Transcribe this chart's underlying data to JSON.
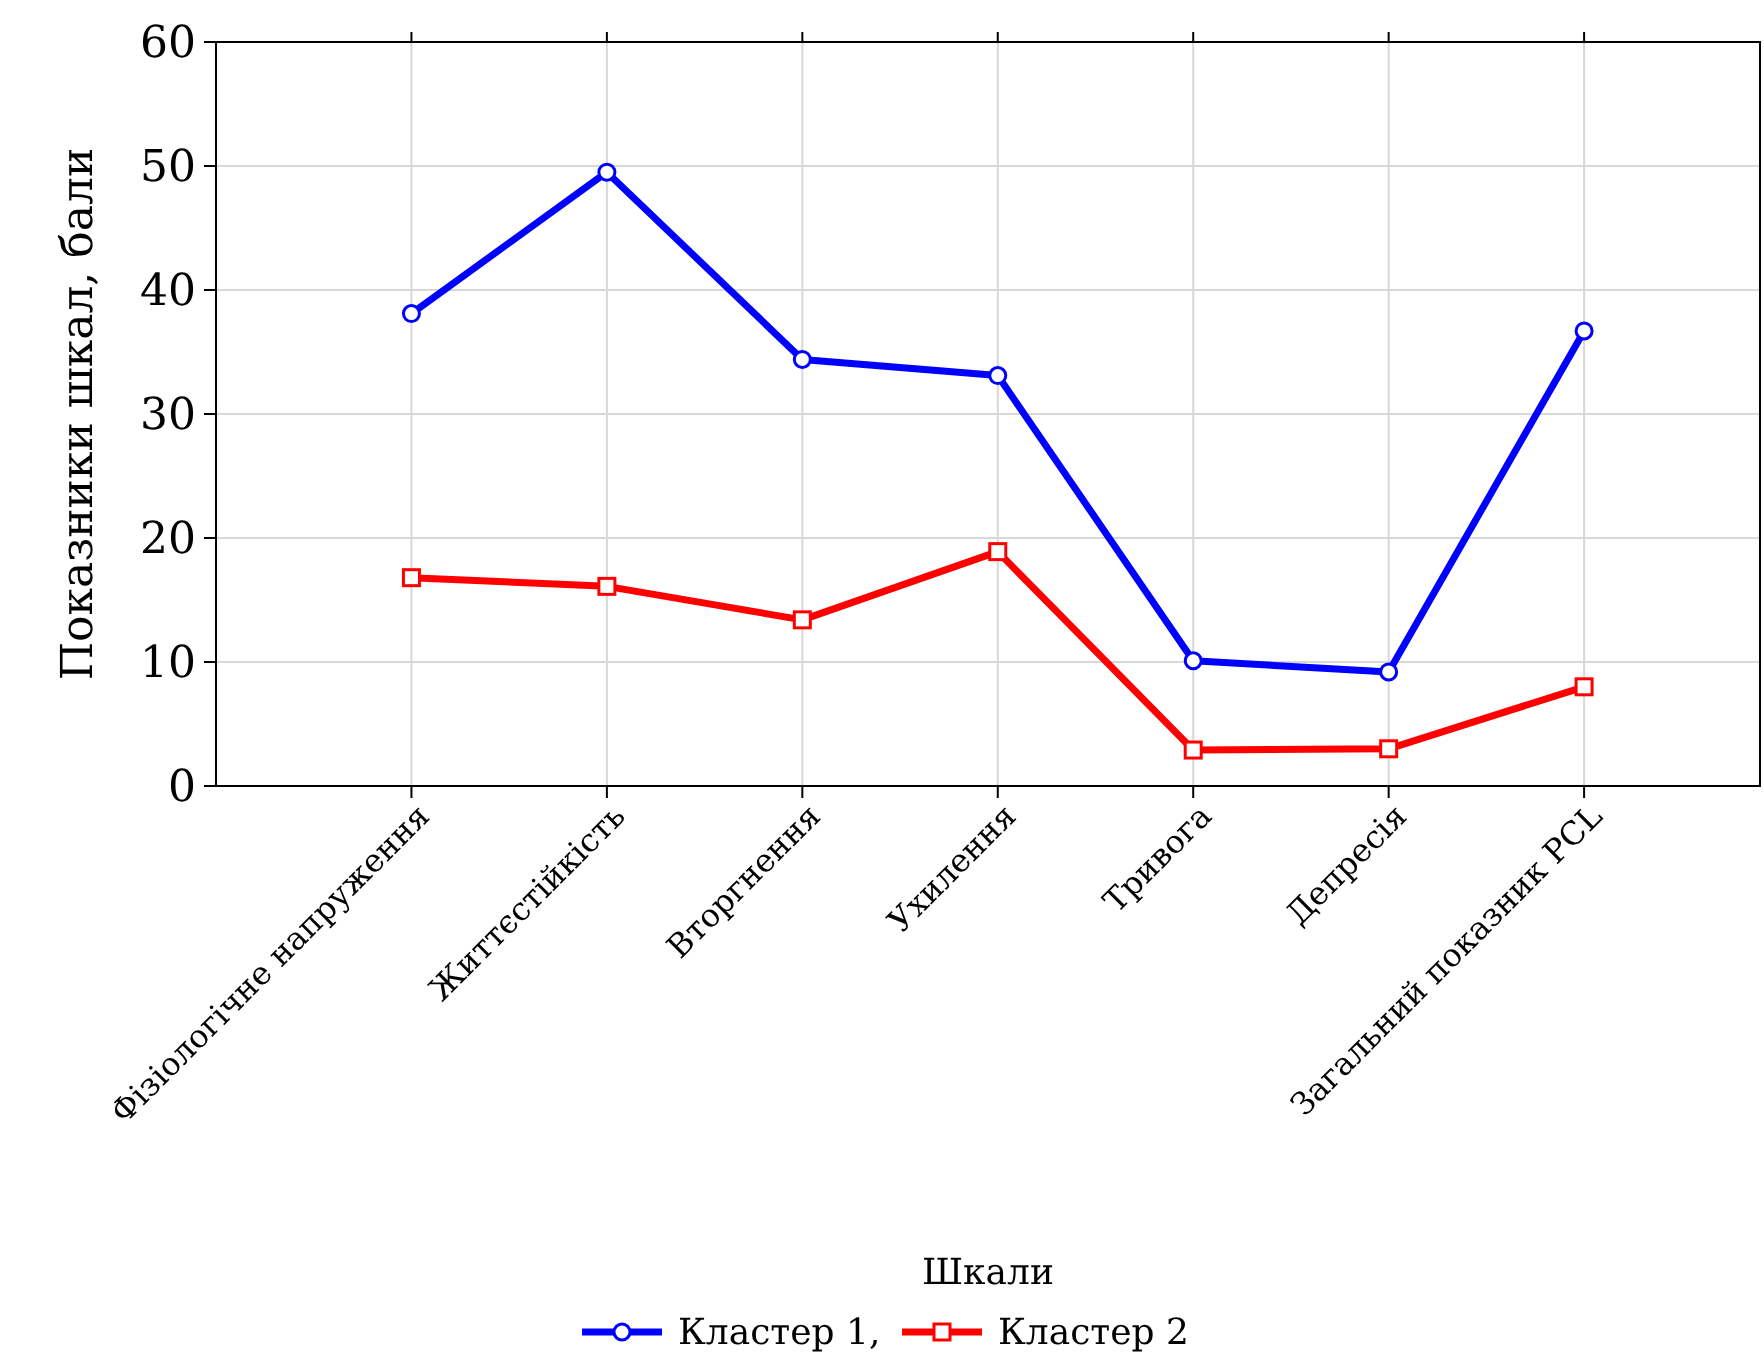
{
  "chart_data": {
    "type": "line",
    "xlabel": "Шкали",
    "ylabel": "Показники шкал, бали",
    "categories": [
      "Фізіологічне напруження",
      "Життєстійкість",
      "Вторгнення",
      "Ухилення",
      "Тривога",
      "Депресія",
      "Загальний показник PCL"
    ],
    "series": [
      {
        "name": "Кластер 1,",
        "color": "#0000ff",
        "marker": "circle",
        "values": [
          38.1,
          49.5,
          34.4,
          33.1,
          10.1,
          9.2,
          36.7
        ]
      },
      {
        "name": "Кластер 2",
        "color": "#ff0000",
        "marker": "square",
        "values": [
          16.8,
          16.1,
          13.4,
          18.9,
          2.9,
          3.0,
          8.0
        ]
      }
    ],
    "ylim": [
      0,
      60
    ],
    "yticks": [
      0,
      10,
      20,
      30,
      40,
      50,
      60
    ],
    "grid": true,
    "legend": "bottom",
    "line_style": "solid"
  }
}
